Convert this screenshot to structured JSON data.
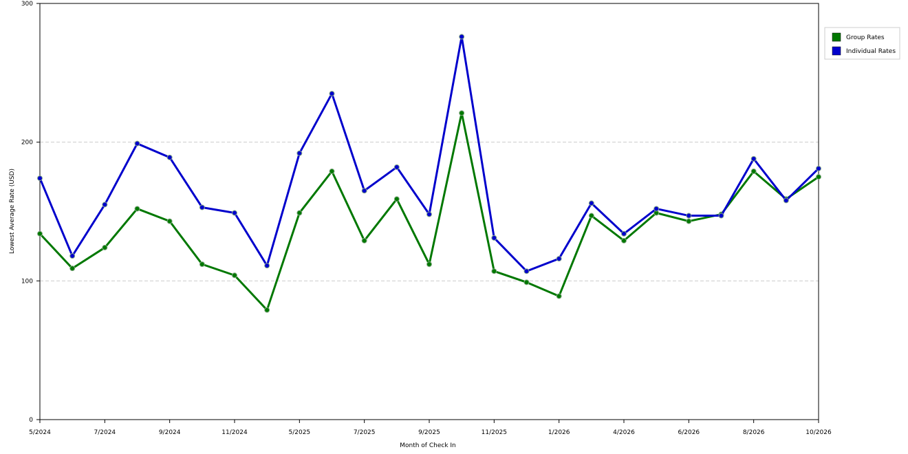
{
  "chart_data": {
    "type": "line",
    "x_label": "Month of Check In",
    "y_label": "Lowest Average Rate (USD)",
    "categories": [
      "5/2024",
      null,
      "7/2024",
      null,
      "9/2024",
      null,
      "11/2024",
      null,
      "5/2025",
      null,
      "7/2025",
      null,
      "9/2025",
      null,
      "11/2025",
      null,
      "1/2026",
      null,
      "4/2026",
      null,
      "6/2026",
      null,
      "8/2026",
      null,
      "10/2026"
    ],
    "series": [
      {
        "name": "Group Rates",
        "color": "#007800",
        "values": [
          134,
          109,
          124,
          152,
          143,
          112,
          104,
          79,
          149,
          179,
          129,
          159,
          112,
          221,
          107,
          99,
          89,
          147,
          129,
          149,
          143,
          148,
          179,
          159,
          175
        ]
      },
      {
        "name": "Individual Rates",
        "color": "#0000cc",
        "values": [
          174,
          118,
          155,
          199,
          189,
          153,
          149,
          111,
          192,
          235,
          165,
          182,
          148,
          276,
          131,
          107,
          116,
          156,
          134,
          152,
          147,
          147,
          188,
          158,
          181
        ]
      }
    ],
    "ylim": [
      0,
      300
    ],
    "yticks": [
      0,
      100,
      200,
      300
    ],
    "grid": true,
    "legend": "right"
  }
}
